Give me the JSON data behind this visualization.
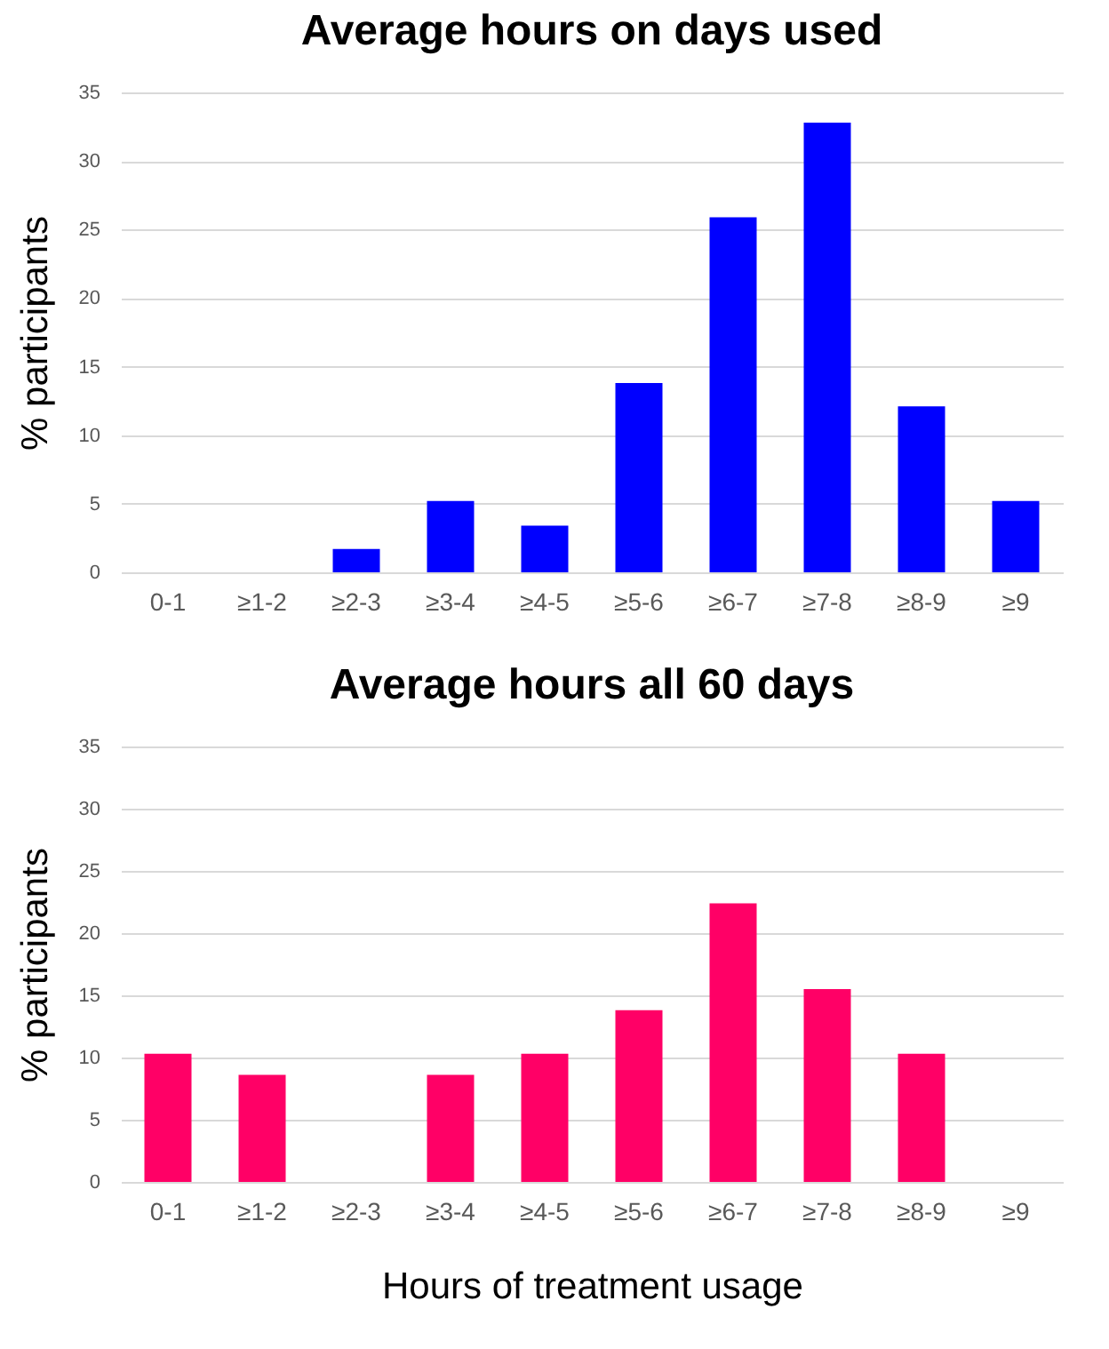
{
  "chart_data": [
    {
      "type": "bar",
      "title": "Average hours on days used",
      "ylabel": "% participants",
      "categories": [
        "0-1",
        "≥1-2",
        "≥2-3",
        "≥3-4",
        "≥4-5",
        "≥5-6",
        "≥6-7",
        "≥7-8",
        "≥8-9",
        "≥9"
      ],
      "series": [
        {
          "color": "#0000ff",
          "values": [
            0,
            0,
            1.7,
            5.2,
            3.4,
            13.8,
            25.9,
            32.8,
            12.1,
            5.2
          ]
        }
      ],
      "ylim": [
        0,
        35
      ],
      "yticks": [
        0,
        5,
        10,
        15,
        20,
        25,
        30,
        35
      ],
      "grid": "y",
      "legend": false
    },
    {
      "type": "bar",
      "title": "Average hours all 60 days",
      "ylabel": "% participants",
      "xlabel": "Hours of treatment usage",
      "categories": [
        "0-1",
        "≥1-2",
        "≥2-3",
        "≥3-4",
        "≥4-5",
        "≥5-6",
        "≥6-7",
        "≥7-8",
        "≥8-9",
        "≥9"
      ],
      "series": [
        {
          "color": "#ff0066",
          "values": [
            10.3,
            8.6,
            0,
            8.6,
            10.3,
            13.8,
            22.4,
            15.5,
            10.3,
            0
          ]
        }
      ],
      "ylim": [
        0,
        35
      ],
      "yticks": [
        0,
        5,
        10,
        15,
        20,
        25,
        30,
        35
      ],
      "grid": "y",
      "legend": false
    }
  ]
}
